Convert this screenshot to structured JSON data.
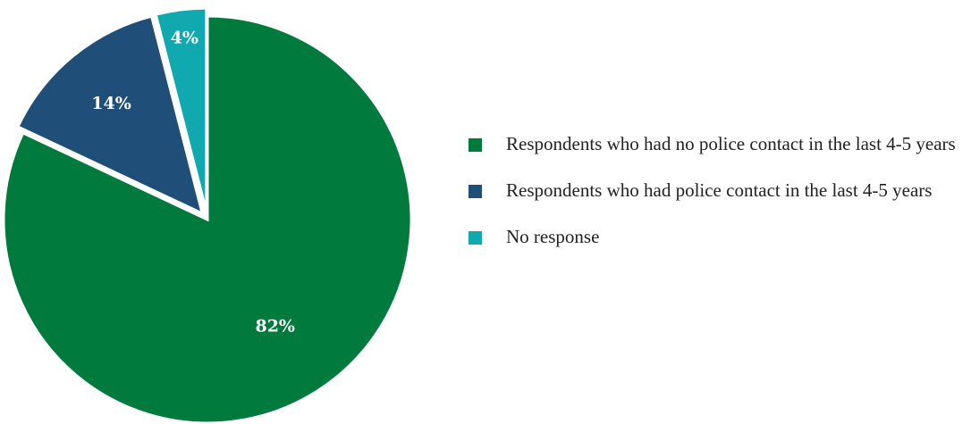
{
  "chart_data": {
    "type": "pie",
    "slices": [
      {
        "label": "Respondents who had no police contact in the last 4-5 years",
        "value": 82,
        "display": "82%",
        "color": "#007a3d"
      },
      {
        "label": "Respondents who had police contact in the last 4-5 years",
        "value": 14,
        "display": "14%",
        "color": "#1f4e79"
      },
      {
        "label": "No response",
        "value": 4,
        "display": "4%",
        "color": "#10a9b0"
      }
    ],
    "legend_position": "right"
  },
  "legend": {
    "items": [
      {
        "label": "Respondents who had no police contact in the last 4-5 years",
        "color": "#007a3d"
      },
      {
        "label": "Respondents who had police contact in the last 4-5 years",
        "color": "#1f4e79"
      },
      {
        "label": "No response",
        "color": "#10a9b0"
      }
    ]
  }
}
